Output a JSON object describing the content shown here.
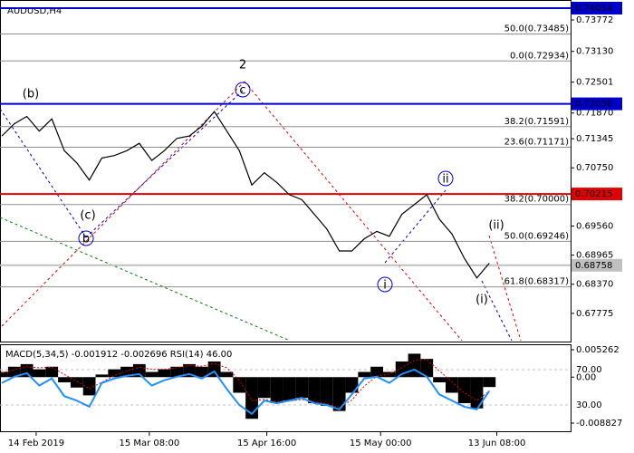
{
  "chart_data": [
    {
      "type": "line",
      "title": "AUDUSD,H4",
      "values": [
        0.714,
        0.7165,
        0.718,
        0.715,
        0.7175,
        0.711,
        0.7085,
        0.705,
        0.7095,
        0.71,
        0.711,
        0.7125,
        0.709,
        0.711,
        0.7135,
        0.714,
        0.716,
        0.719,
        0.715,
        0.711,
        0.704,
        0.7065,
        0.7045,
        0.702,
        0.701,
        0.698,
        0.695,
        0.6905,
        0.6905,
        0.693,
        0.6945,
        0.6935,
        0.698,
        0.7,
        0.702,
        0.697,
        0.694,
        0.689,
        0.685,
        0.688
      ],
      "color": "#000000",
      "xlim": [
        0,
        45.5
      ],
      "xticks": [
        {
          "value": 2.75,
          "label": "14 Feb 2019"
        },
        {
          "value": 11.8,
          "label": "15 Mar 08:00"
        },
        {
          "value": 21.2,
          "label": "15 Apr 16:00"
        },
        {
          "value": 30.3,
          "label": "15 May 00:00"
        },
        {
          "value": 39.6,
          "label": "13 Jun 08:00"
        }
      ],
      "ylim": [
        0.6718,
        0.7418
      ],
      "yticks": [
        0.73772,
        {
          "value": 0.7313,
          "label": "0.73130"
        },
        0.72501,
        {
          "value": 0.7187,
          "label": "0.71870"
        },
        0.71345,
        {
          "value": 0.7075,
          "label": "0.70750"
        },
        {
          "value": 0.6956,
          "label": "0.69560"
        },
        0.68965,
        {
          "value": 0.6837,
          "label": "0.68370"
        },
        0.67775
      ],
      "levels": [
        {
          "value": 0.74014,
          "label": "0.74014",
          "color": "#0000cc"
        },
        {
          "value": 0.72058,
          "label": "0.72058",
          "color": "#0000cc"
        },
        {
          "value": 0.70215,
          "label": "0.70215",
          "color": "#e00000"
        },
        {
          "value": 0.68758,
          "label": "0.68758",
          "color": "#c0c0c0"
        }
      ],
      "fib_levels": [
        {
          "value": 0.73485,
          "label": "50.0(0.73485)"
        },
        {
          "value": 0.72934,
          "label": "0.0(0.72934)"
        },
        {
          "value": 0.71591,
          "label": "38.2(0.71591)"
        },
        {
          "value": 0.71171,
          "label": "23.6(0.71171)"
        },
        {
          "value": 0.7,
          "label": "38.2(0.70000)"
        },
        {
          "value": 0.69246,
          "label": "50.0(0.69246)"
        },
        {
          "value": 0.68317,
          "label": "61.8(0.68317)"
        }
      ],
      "annotations": [
        "(b)",
        "(c)",
        "2",
        "c",
        "b",
        "ii",
        "(ii)",
        "i",
        "(i)"
      ]
    },
    {
      "type": "indicator",
      "title": "MACD(5,34,5) -0.001912 -0.002696 RSI(14) 46.00",
      "ylim": [
        -0.01022,
        0.00631
      ],
      "yticks": [
        0.005262,
        {
          "value": 0,
          "label": "0.00"
        },
        -0.008827
      ],
      "y2lim": [
        1.3,
        98.7
      ],
      "y2ticks": [
        {
          "value": 70,
          "label": "70.00"
        },
        {
          "value": 30,
          "label": "30.00"
        }
      ],
      "series": [
        {
          "name": "MACD",
          "color": "#000000",
          "values": [
            0.001,
            0.002,
            0.0025,
            0.0015,
            0.002,
            -0.001,
            -0.002,
            -0.0035,
            0.0005,
            0.0015,
            0.002,
            0.0025,
            0.001,
            0.0015,
            0.002,
            0.0025,
            0.002,
            0.003,
            0.001,
            -0.003,
            -0.008,
            -0.004,
            -0.005,
            -0.0045,
            -0.004,
            -0.005,
            -0.0055,
            -0.0065,
            -0.003,
            0.001,
            0.002,
            0.001,
            0.003,
            0.0045,
            0.0035,
            -0.001,
            -0.003,
            -0.005,
            -0.006,
            -0.0019
          ]
        },
        {
          "name": "Signal",
          "color": "#e00000",
          "values": [
            0.0008,
            0.0014,
            0.002,
            0.0018,
            0.0019,
            0.0005,
            -0.0008,
            -0.0022,
            -0.001,
            0.0003,
            0.0012,
            0.0019,
            0.0015,
            0.0015,
            0.0018,
            0.0022,
            0.0021,
            0.0026,
            0.0018,
            -0.0006,
            -0.0045,
            -0.0043,
            -0.0047,
            -0.0046,
            -0.0043,
            -0.0047,
            -0.0051,
            -0.0058,
            -0.0044,
            -0.0017,
            0.0002,
            0.0006,
            0.0018,
            0.0032,
            0.0034,
            0.0012,
            -0.0009,
            -0.003,
            -0.0045,
            -0.0027
          ]
        },
        {
          "name": "RSI",
          "color": "#1e90ff",
          "axis": "y2",
          "values": [
            55,
            62,
            66,
            52,
            60,
            40,
            35,
            28,
            55,
            60,
            63,
            65,
            52,
            58,
            62,
            65,
            60,
            68,
            48,
            30,
            20,
            35,
            32,
            35,
            38,
            32,
            30,
            25,
            42,
            60,
            62,
            55,
            65,
            70,
            62,
            42,
            35,
            28,
            25,
            46
          ]
        }
      ]
    }
  ]
}
